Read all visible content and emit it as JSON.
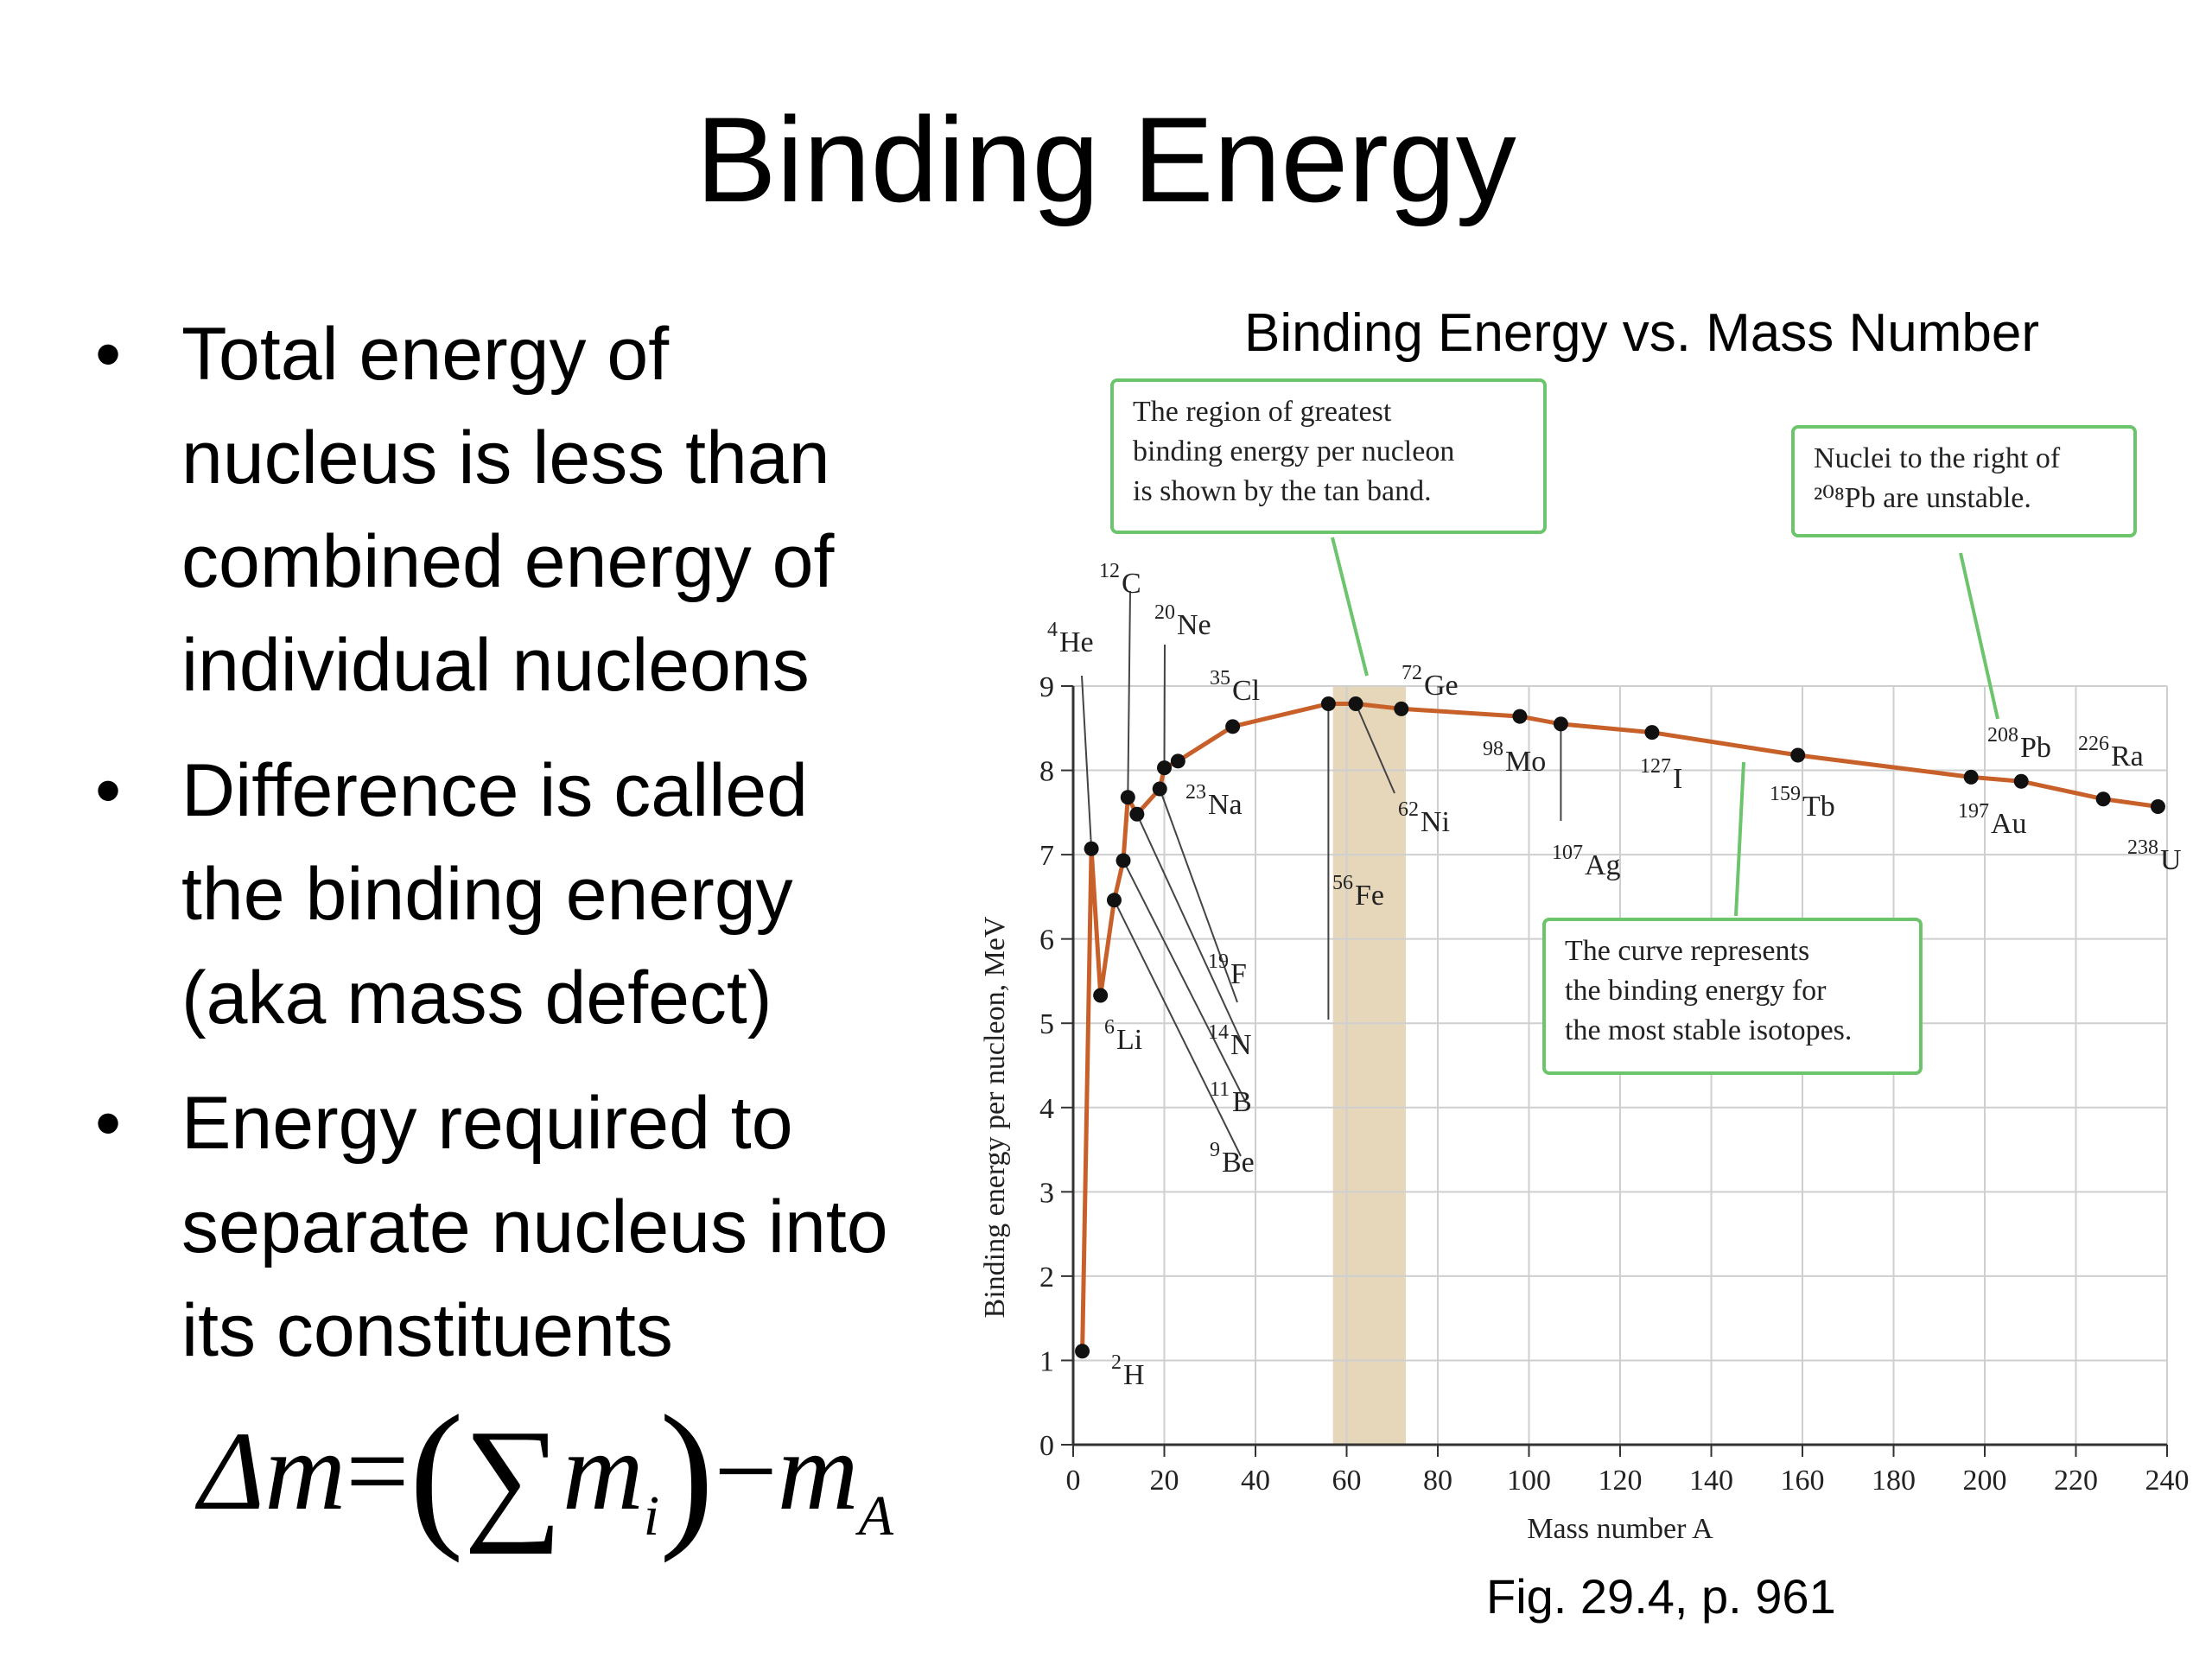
{
  "slide": {
    "title": "Binding Energy",
    "bullets": [
      [
        "Total energy of",
        "nucleus is less than",
        "combined energy of",
        "individual nucleons"
      ],
      [
        "Difference is called",
        "the binding energy",
        "(aka mass defect)"
      ],
      [
        "Energy required to",
        "separate nucleus into",
        "its constituents"
      ]
    ],
    "bullet_glyph": "•",
    "formula": {
      "delta_m": "Δm",
      "equals": "=",
      "open_paren": "(",
      "sum": "∑",
      "m": "m",
      "sub_i": "i",
      "close_paren": ")",
      "minus": "−",
      "sub_A": "A"
    },
    "caption": "Fig. 29.4, p. 961"
  },
  "chart_data": {
    "type": "line",
    "title": "Binding Energy vs. Mass Number",
    "xlabel": "Mass number A",
    "ylabel": "Binding energy per nucleon, MeV",
    "xlim": [
      0,
      240
    ],
    "ylim": [
      0,
      9
    ],
    "xticks": [
      0,
      20,
      40,
      60,
      80,
      100,
      120,
      140,
      160,
      180,
      200,
      220,
      240
    ],
    "yticks": [
      0,
      1,
      2,
      3,
      4,
      5,
      6,
      7,
      8,
      9
    ],
    "grid": true,
    "band": {
      "x_start": 57,
      "x_end": 73,
      "color": "#e6d7bb"
    },
    "line_color": "#c8602a",
    "point_color": "#111111",
    "points": [
      {
        "x": 2,
        "y": 1.11
      },
      {
        "x": 4,
        "y": 7.07
      },
      {
        "x": 6,
        "y": 5.33
      },
      {
        "x": 9,
        "y": 6.46
      },
      {
        "x": 11,
        "y": 6.93
      },
      {
        "x": 12,
        "y": 7.68
      },
      {
        "x": 14,
        "y": 7.48
      },
      {
        "x": 19,
        "y": 7.78
      },
      {
        "x": 20,
        "y": 8.03
      },
      {
        "x": 23,
        "y": 8.11
      },
      {
        "x": 35,
        "y": 8.52
      },
      {
        "x": 56,
        "y": 8.79
      },
      {
        "x": 62,
        "y": 8.79
      },
      {
        "x": 72,
        "y": 8.73
      },
      {
        "x": 98,
        "y": 8.64
      },
      {
        "x": 107,
        "y": 8.55
      },
      {
        "x": 127,
        "y": 8.45
      },
      {
        "x": 159,
        "y": 8.18
      },
      {
        "x": 197,
        "y": 7.92
      },
      {
        "x": 208,
        "y": 7.87
      },
      {
        "x": 226,
        "y": 7.66
      },
      {
        "x": 238,
        "y": 7.57
      }
    ],
    "nuclides": [
      {
        "mass": "2",
        "symbol": "H"
      },
      {
        "mass": "4",
        "symbol": "He"
      },
      {
        "mass": "6",
        "symbol": "Li"
      },
      {
        "mass": "9",
        "symbol": "Be"
      },
      {
        "mass": "11",
        "symbol": "B"
      },
      {
        "mass": "12",
        "symbol": "C"
      },
      {
        "mass": "14",
        "symbol": "N"
      },
      {
        "mass": "19",
        "symbol": "F"
      },
      {
        "mass": "20",
        "symbol": "Ne"
      },
      {
        "mass": "23",
        "symbol": "Na"
      },
      {
        "mass": "35",
        "symbol": "Cl"
      },
      {
        "mass": "56",
        "symbol": "Fe"
      },
      {
        "mass": "62",
        "symbol": "Ni"
      },
      {
        "mass": "72",
        "symbol": "Ge"
      },
      {
        "mass": "98",
        "symbol": "Mo"
      },
      {
        "mass": "107",
        "symbol": "Ag"
      },
      {
        "mass": "127",
        "symbol": "I"
      },
      {
        "mass": "159",
        "symbol": "Tb"
      },
      {
        "mass": "197",
        "symbol": "Au"
      },
      {
        "mass": "208",
        "symbol": "Pb"
      },
      {
        "mass": "226",
        "symbol": "Ra"
      },
      {
        "mass": "238",
        "symbol": "U"
      }
    ],
    "annotations": {
      "band_note": [
        "The region of greatest",
        "binding energy per nucleon",
        "is shown by the tan band."
      ],
      "unstable_note": [
        "Nuclei to the right of",
        "²⁰⁸Pb are unstable."
      ],
      "curve_note": [
        "The curve represents",
        "the binding energy for",
        "the most stable isotopes."
      ]
    },
    "callout_border_color": "#6cc46c"
  }
}
